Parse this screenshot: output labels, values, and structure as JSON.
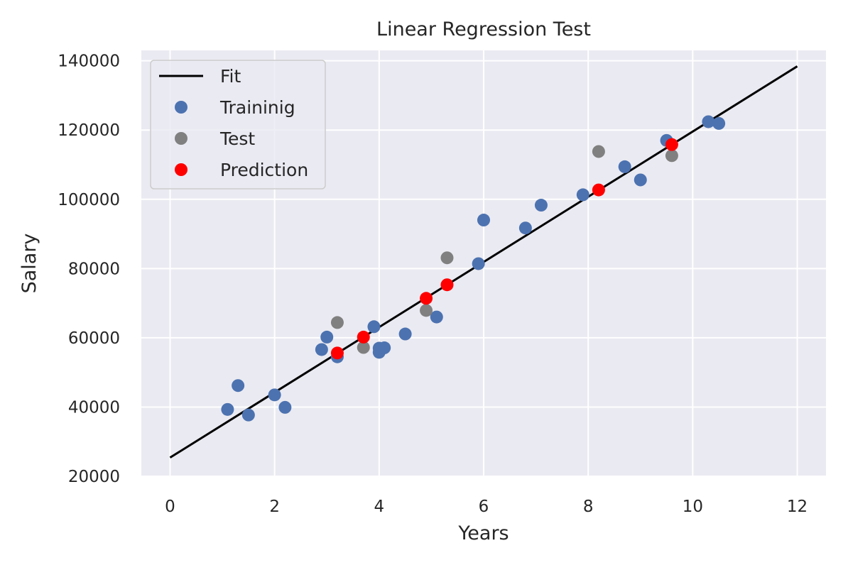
{
  "chart_data": {
    "type": "scatter",
    "title": "Linear Regression Test",
    "xlabel": "Years",
    "ylabel": "Salary",
    "xlim": [
      -0.55,
      12.55
    ],
    "ylim": [
      20000,
      143000
    ],
    "xticks": [
      0,
      2,
      4,
      6,
      8,
      10,
      12
    ],
    "yticks": [
      20000,
      40000,
      60000,
      80000,
      100000,
      120000,
      140000
    ],
    "xtick_labels": [
      "0",
      "2",
      "4",
      "6",
      "8",
      "10",
      "12"
    ],
    "ytick_labels": [
      "20000",
      "40000",
      "60000",
      "80000",
      "100000",
      "120000",
      "140000"
    ],
    "grid": true,
    "legend_position": "upper-left",
    "fit": {
      "name": "Fit",
      "color": "#000000",
      "x": [
        0,
        12
      ],
      "y": [
        25400,
        138400
      ]
    },
    "series": [
      {
        "name": "Traininig",
        "color": "#4c72b0",
        "x": [
          1.1,
          1.3,
          1.5,
          2.0,
          2.2,
          2.9,
          3.0,
          3.2,
          3.9,
          4.0,
          4.0,
          4.1,
          4.5,
          5.1,
          5.9,
          6.0,
          6.8,
          7.1,
          7.9,
          8.7,
          9.0,
          9.5,
          10.3,
          10.5
        ],
        "y": [
          39300,
          46200,
          37700,
          43500,
          39900,
          56600,
          60200,
          54500,
          63200,
          55800,
          57000,
          57100,
          61100,
          66000,
          81400,
          94000,
          91700,
          98300,
          101300,
          109400,
          105600,
          117000,
          122400,
          121900
        ]
      },
      {
        "name": "Test",
        "color": "#808080",
        "x": [
          3.2,
          3.7,
          4.9,
          5.3,
          8.2,
          9.6
        ],
        "y": [
          64400,
          57200,
          67900,
          83100,
          113800,
          112600
        ]
      },
      {
        "name": "Prediction",
        "color": "#ff0000",
        "x": [
          3.2,
          3.7,
          4.9,
          5.3,
          8.2,
          9.6
        ],
        "y": [
          55600,
          60200,
          71400,
          75300,
          102700,
          115800
        ]
      }
    ]
  }
}
